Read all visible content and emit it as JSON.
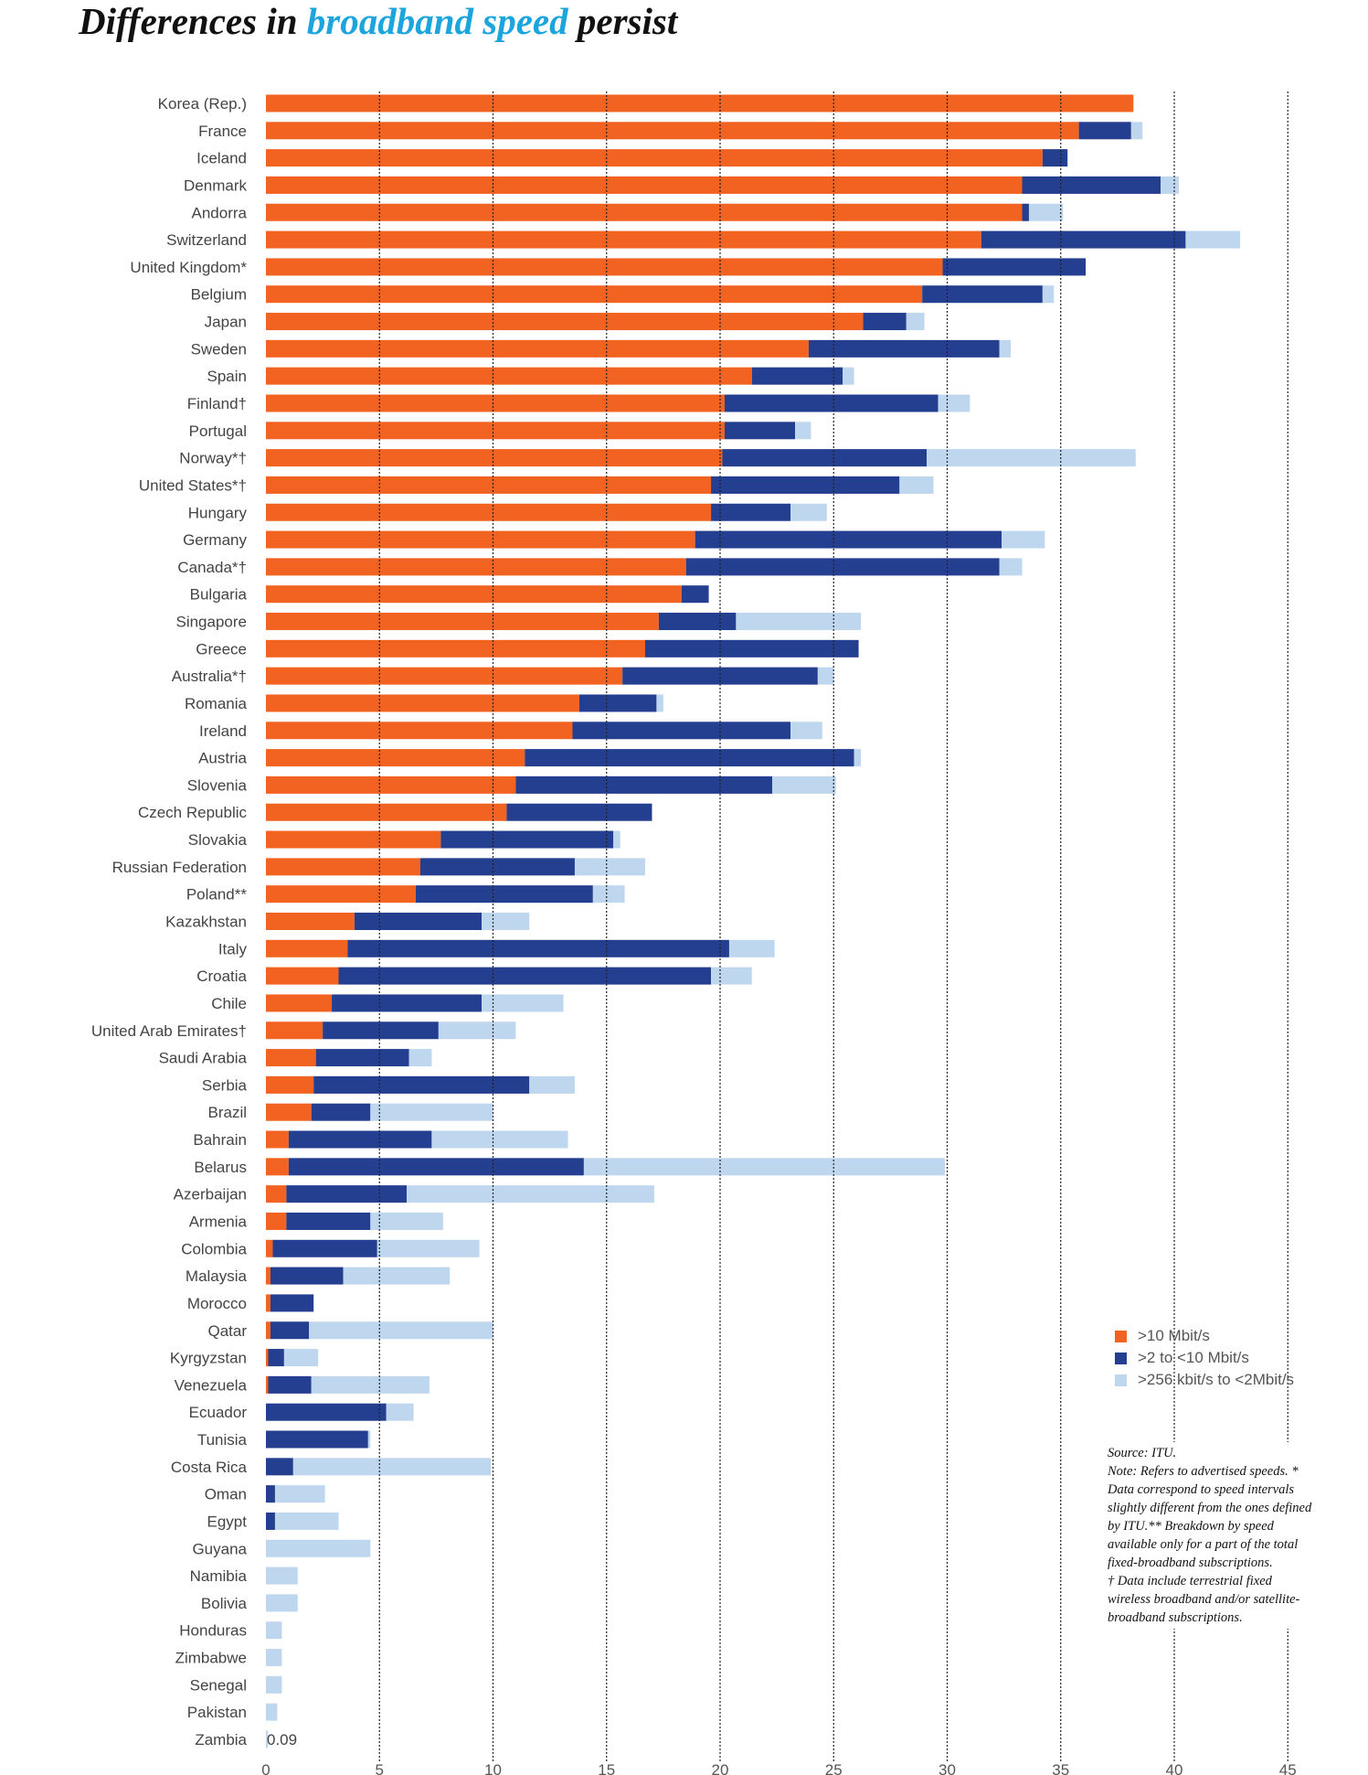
{
  "title": {
    "part1": "Differences in",
    "part2": "broadband speed",
    "part3": "persist"
  },
  "colors": {
    "high": "#f26322",
    "mid": "#243f8f",
    "low": "#bfd7ee",
    "title_accent": "#1ba5dc"
  },
  "legend": {
    "items": [
      {
        "label": ">10 Mbit/s",
        "color": "#f26322"
      },
      {
        "label": ">2 to <10 Mbit/s",
        "color": "#243f8f"
      },
      {
        "label": ">256 kbit/s to <2Mbit/s",
        "color": "#bfd7ee"
      }
    ]
  },
  "notes": {
    "source": "Source: ITU.",
    "note": "Note: Refers to advertised speeds. * Data correspond to speed intervals slightly different from the ones defined by ITU.** Breakdown by speed available only for a part of the total fixed-broadband subscriptions.",
    "dagger": "† Data include terrestrial fixed wireless broadband and/or satellite-broadband subscriptions."
  },
  "chart_data": {
    "type": "bar",
    "orientation": "horizontal",
    "stacked": true,
    "xlim": [
      0,
      45
    ],
    "x_ticks": [
      0,
      5,
      10,
      15,
      20,
      25,
      30,
      35,
      40,
      45
    ],
    "grid": "vertical dotted lines",
    "legend_position": "bottom-right",
    "value_annotation": {
      "category": "Zambia",
      "text": "0.09"
    },
    "categories": [
      "Korea (Rep.)",
      "France",
      "Iceland",
      "Denmark",
      "Andorra",
      "Switzerland",
      "United Kingdom*",
      "Belgium",
      "Japan",
      "Sweden",
      "Spain",
      "Finland†",
      "Portugal",
      "Norway*†",
      "United States*†",
      "Hungary",
      "Germany",
      "Canada*†",
      "Bulgaria",
      "Singapore",
      "Greece",
      "Australia*†",
      "Romania",
      "Ireland",
      "Austria",
      "Slovenia",
      "Czech Republic",
      "Slovakia",
      "Russian Federation",
      "Poland**",
      "Kazakhstan",
      "Italy",
      "Croatia",
      "Chile",
      "United Arab Emirates†",
      "Saudi Arabia",
      "Serbia",
      "Brazil",
      "Bahrain",
      "Belarus",
      "Azerbaijan",
      "Armenia",
      "Colombia",
      "Malaysia",
      "Morocco",
      "Qatar",
      "Kyrgyzstan",
      "Venezuela",
      "Ecuador",
      "Tunisia",
      "Costa Rica",
      "Oman",
      "Egypt",
      "Guyana",
      "Namibia",
      "Bolivia",
      "Honduras",
      "Zimbabwe",
      "Senegal",
      "Pakistan",
      "Zambia"
    ],
    "series": [
      {
        "name": ">10 Mbit/s",
        "values": [
          38.2,
          35.8,
          34.2,
          33.3,
          33.3,
          31.5,
          29.8,
          28.9,
          26.3,
          23.9,
          21.4,
          20.2,
          20.2,
          20.1,
          19.6,
          19.6,
          18.9,
          18.5,
          18.3,
          17.3,
          16.7,
          15.7,
          13.8,
          13.5,
          11.4,
          11.0,
          10.6,
          7.7,
          6.8,
          6.6,
          3.9,
          3.6,
          3.2,
          2.9,
          2.5,
          2.2,
          2.1,
          2.0,
          1.0,
          1.0,
          0.9,
          0.9,
          0.3,
          0.2,
          0.2,
          0.2,
          0.1,
          0.1,
          0,
          0,
          0,
          0,
          0,
          0,
          0,
          0,
          0,
          0,
          0,
          0,
          0
        ]
      },
      {
        "name": ">2 to <10 Mbit/s",
        "values": [
          0,
          2.3,
          1.1,
          6.1,
          0.3,
          9.0,
          6.3,
          5.3,
          1.9,
          8.4,
          4.0,
          9.4,
          3.1,
          9.0,
          8.3,
          3.5,
          13.5,
          13.8,
          1.2,
          3.4,
          9.4,
          8.6,
          3.4,
          9.6,
          14.5,
          11.3,
          6.4,
          7.6,
          6.8,
          7.8,
          5.6,
          16.8,
          16.4,
          6.6,
          5.1,
          4.1,
          9.5,
          2.6,
          6.3,
          13.0,
          5.3,
          3.7,
          4.6,
          3.2,
          1.9,
          1.7,
          0.7,
          1.9,
          5.3,
          4.5,
          1.2,
          0.4,
          0.4,
          0,
          0,
          0,
          0,
          0,
          0,
          0,
          0
        ]
      },
      {
        "name": ">256 kbit/s to <2Mbit/s",
        "values": [
          0,
          0.5,
          0,
          0.8,
          1.5,
          2.4,
          0,
          0.5,
          0.8,
          0.5,
          0.5,
          1.4,
          0.7,
          9.2,
          1.5,
          1.6,
          1.9,
          1.0,
          0,
          5.5,
          0,
          0.7,
          0.3,
          1.4,
          0.3,
          2.8,
          0,
          0.3,
          3.1,
          1.4,
          2.1,
          2.0,
          1.8,
          3.6,
          3.4,
          1.0,
          2.0,
          5.4,
          6.0,
          15.9,
          10.9,
          3.2,
          4.5,
          4.7,
          0,
          8.1,
          1.5,
          5.2,
          1.2,
          0.1,
          8.7,
          2.2,
          2.8,
          4.6,
          1.4,
          1.4,
          0.7,
          0.7,
          0.7,
          0.5,
          0.09
        ]
      }
    ]
  }
}
